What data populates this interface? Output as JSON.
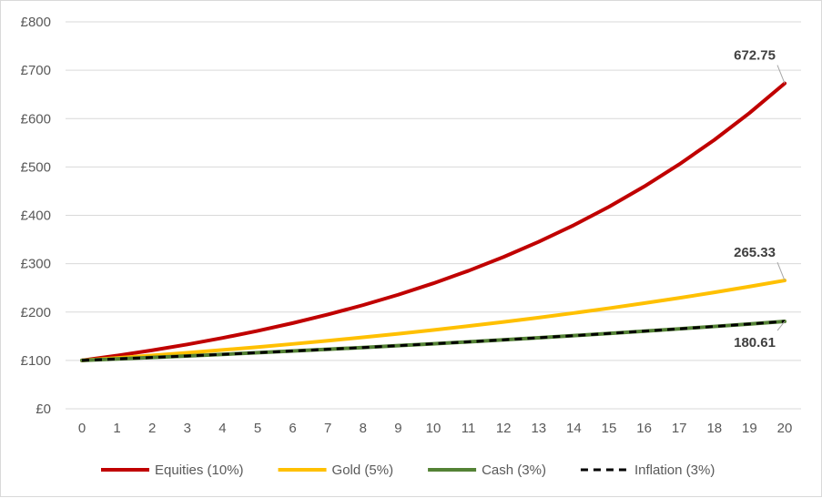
{
  "chart_data": {
    "type": "line",
    "title": "",
    "xlabel": "",
    "ylabel": "",
    "x": [
      0,
      1,
      2,
      3,
      4,
      5,
      6,
      7,
      8,
      9,
      10,
      11,
      12,
      13,
      14,
      15,
      16,
      17,
      18,
      19,
      20
    ],
    "ylim": [
      0,
      800
    ],
    "y_tick_step": 100,
    "y_tick_labels": [
      "£0",
      "£100",
      "£200",
      "£300",
      "£400",
      "£500",
      "£600",
      "£700",
      "£800"
    ],
    "grid": "horizontal",
    "legend_position": "bottom",
    "series": [
      {
        "name": "Equities (10%)",
        "color": "#c00000",
        "dash": "solid",
        "values": [
          100,
          110,
          121,
          133.1,
          146.41,
          161.05,
          177.16,
          194.87,
          214.36,
          235.79,
          259.37,
          285.31,
          313.84,
          345.23,
          379.75,
          417.72,
          459.5,
          505.45,
          555.99,
          611.59,
          672.75
        ]
      },
      {
        "name": "Gold (5%)",
        "color": "#ffc000",
        "dash": "solid",
        "values": [
          100,
          105,
          110.25,
          115.76,
          121.55,
          127.63,
          134.01,
          140.71,
          147.75,
          155.13,
          162.89,
          171.03,
          179.59,
          188.56,
          197.99,
          207.89,
          218.29,
          229.2,
          240.66,
          252.7,
          265.33
        ]
      },
      {
        "name": "Cash (3%)",
        "color": "#548235",
        "dash": "solid",
        "values": [
          100,
          103,
          106.09,
          109.27,
          112.55,
          115.93,
          119.41,
          122.99,
          126.68,
          130.48,
          134.39,
          138.42,
          142.58,
          146.85,
          151.26,
          155.8,
          160.47,
          165.28,
          170.24,
          175.35,
          180.61
        ]
      },
      {
        "name": "Inflation (3%)",
        "color": "#000000",
        "dash": "dashed",
        "values": [
          100,
          103,
          106.09,
          109.27,
          112.55,
          115.93,
          119.41,
          122.99,
          126.68,
          130.48,
          134.39,
          138.42,
          142.58,
          146.85,
          151.26,
          155.8,
          160.47,
          165.28,
          170.24,
          175.35,
          180.61
        ]
      }
    ],
    "annotations": [
      {
        "series": "Equities (10%)",
        "x": 20,
        "text": "672.75"
      },
      {
        "series": "Gold (5%)",
        "x": 20,
        "text": "265.33"
      },
      {
        "series": "Cash (3%)",
        "x": 20,
        "text": "180.61"
      }
    ]
  }
}
